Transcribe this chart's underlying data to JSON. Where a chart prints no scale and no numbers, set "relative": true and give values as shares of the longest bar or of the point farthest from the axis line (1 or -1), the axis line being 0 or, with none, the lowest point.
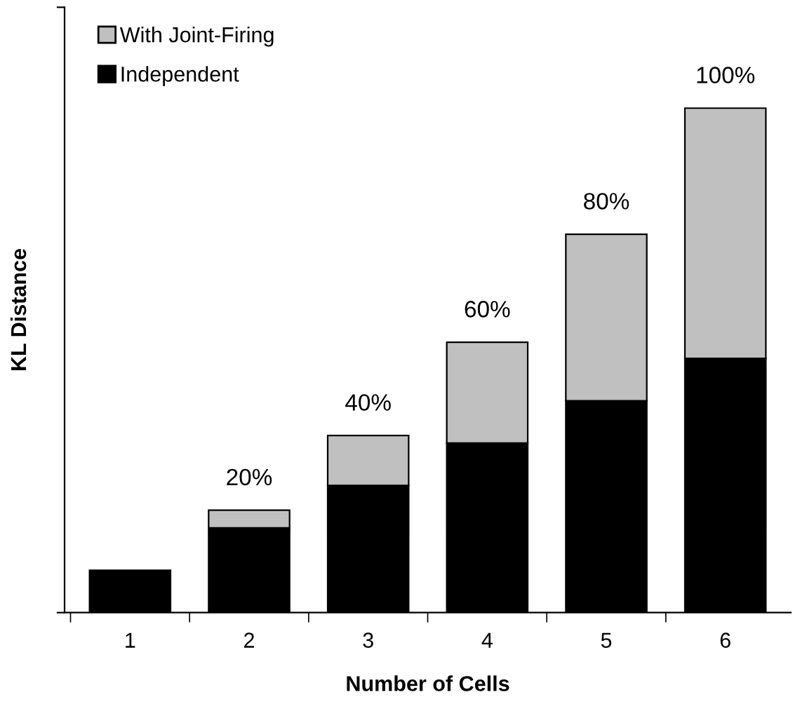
{
  "chart_data": {
    "type": "bar",
    "stacked": true,
    "relative": true,
    "xlabel": "Number of Cells",
    "ylabel": "KL Distance",
    "categories": [
      "1",
      "2",
      "3",
      "4",
      "5",
      "6"
    ],
    "series": [
      {
        "name": "Independent",
        "color": "#000000",
        "values": [
          0.084,
          0.168,
          0.252,
          0.336,
          0.42,
          0.504
        ]
      },
      {
        "name": "With Joint-Firing",
        "color": "#c0c0c0",
        "values": [
          null,
          0.035,
          0.099,
          0.2,
          0.33,
          0.496
        ]
      }
    ],
    "annotations": [
      {
        "text": "20%",
        "x": "2",
        "y": 0.203
      },
      {
        "text": "40%",
        "x": "3",
        "y": 0.351
      },
      {
        "text": "60%",
        "x": "4",
        "y": 0.536
      },
      {
        "text": "80%",
        "x": "5",
        "y": 0.75
      },
      {
        "text": "100%",
        "x": "6",
        "y": 1.0
      }
    ],
    "legend": "top left",
    "grid": false,
    "tick_labels": "x"
  }
}
